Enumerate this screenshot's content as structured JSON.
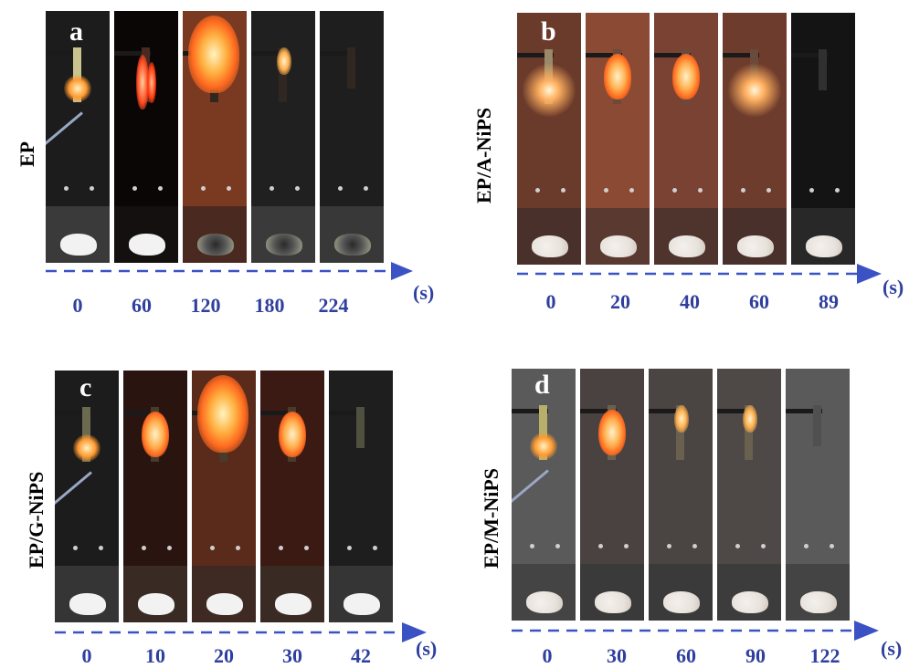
{
  "colors": {
    "axis": "#3a52c4",
    "tick_text": "#2e3f9e",
    "panel_label": "#ffffff"
  },
  "panels": [
    {
      "letter": "a",
      "label": "EP",
      "unit": "(s)",
      "times": [
        "0",
        "60",
        "120",
        "180",
        "224"
      ]
    },
    {
      "letter": "b",
      "label": "EP/A-NiPS",
      "unit": "(s)",
      "times": [
        "0",
        "20",
        "40",
        "60",
        "89"
      ]
    },
    {
      "letter": "c",
      "label": "EP/G-NiPS",
      "unit": "(s)",
      "times": [
        "0",
        "10",
        "20",
        "30",
        "42"
      ]
    },
    {
      "letter": "d",
      "label": "EP/M-NiPS",
      "unit": "(s)",
      "times": [
        "0",
        "30",
        "60",
        "90",
        "122"
      ]
    }
  ]
}
